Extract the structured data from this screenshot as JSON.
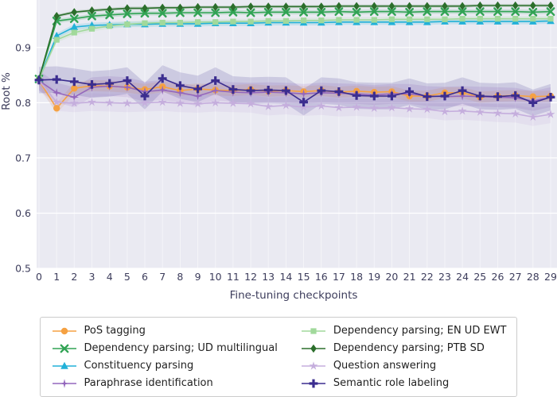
{
  "figure": {
    "xlabel": "Fine-tuning checkpoints",
    "ylabel": "Root %"
  },
  "chart_data": {
    "type": "line",
    "title": "",
    "xlabel": "Fine-tuning checkpoints",
    "ylabel": "Root %",
    "background": "#eaeaf2",
    "grid": true,
    "legend_position": "below",
    "x": [
      0,
      1,
      2,
      3,
      4,
      5,
      6,
      7,
      8,
      9,
      10,
      11,
      12,
      13,
      14,
      15,
      16,
      17,
      18,
      19,
      20,
      21,
      22,
      23,
      24,
      25,
      26,
      27,
      28,
      29
    ],
    "xlim": [
      0,
      29
    ],
    "ylim": [
      0.5,
      0.986
    ],
    "yticks": [
      0.5,
      0.6,
      0.7,
      0.8,
      0.9
    ],
    "ytick_labels": [
      "0.5",
      "0.6",
      "0.7",
      "0.8",
      "0.9"
    ],
    "series": [
      {
        "name": "PoS tagging",
        "color": "#f5a142",
        "marker": "circle",
        "band": 0.01,
        "values": [
          0.84,
          0.79,
          0.826,
          0.831,
          0.83,
          0.828,
          0.824,
          0.829,
          0.822,
          0.825,
          0.823,
          0.822,
          0.824,
          0.821,
          0.822,
          0.82,
          0.822,
          0.819,
          0.821,
          0.819,
          0.82,
          0.812,
          0.812,
          0.818,
          0.818,
          0.81,
          0.812,
          0.813,
          0.811,
          0.812
        ]
      },
      {
        "name": "Dependency parsing; UD multilingual",
        "color": "#31a354",
        "marker": "x",
        "band": 0.004,
        "values": [
          0.843,
          0.948,
          0.952,
          0.957,
          0.959,
          0.961,
          0.962,
          0.962,
          0.963,
          0.963,
          0.963,
          0.964,
          0.963,
          0.964,
          0.964,
          0.964,
          0.964,
          0.965,
          0.964,
          0.965,
          0.965,
          0.964,
          0.965,
          0.965,
          0.965,
          0.965,
          0.965,
          0.965,
          0.964,
          0.965
        ]
      },
      {
        "name": "Constituency parsing",
        "color": "#22b1d8",
        "marker": "triangle",
        "band": 0.005,
        "values": [
          0.843,
          0.921,
          0.937,
          0.94,
          0.941,
          0.942,
          0.942,
          0.943,
          0.943,
          0.943,
          0.944,
          0.944,
          0.944,
          0.945,
          0.945,
          0.945,
          0.945,
          0.946,
          0.946,
          0.946,
          0.946,
          0.946,
          0.946,
          0.947,
          0.947,
          0.947,
          0.947,
          0.947,
          0.947,
          0.948
        ]
      },
      {
        "name": "Paraphrase identification",
        "color": "#9467bd",
        "marker": "star4",
        "band": 0.018,
        "values": [
          0.84,
          0.818,
          0.81,
          0.828,
          0.83,
          0.828,
          0.82,
          0.823,
          0.818,
          0.812,
          0.822,
          0.819,
          0.818,
          0.819,
          0.818,
          0.816,
          0.818,
          0.817,
          0.816,
          0.814,
          0.816,
          0.816,
          0.812,
          0.811,
          0.812,
          0.811,
          0.81,
          0.809,
          0.803,
          0.81
        ]
      },
      {
        "name": "Dependency parsing; EN UD EWT",
        "color": "#a1d99b",
        "marker": "square",
        "band": 0.005,
        "values": [
          0.843,
          0.914,
          0.927,
          0.934,
          0.939,
          0.942,
          0.944,
          0.945,
          0.945,
          0.946,
          0.946,
          0.947,
          0.947,
          0.948,
          0.948,
          0.949,
          0.949,
          0.95,
          0.95,
          0.95,
          0.951,
          0.951,
          0.951,
          0.951,
          0.952,
          0.952,
          0.952,
          0.952,
          0.952,
          0.952
        ]
      },
      {
        "name": "Dependency parsing; PTB SD",
        "color": "#2b6e2b",
        "marker": "diamond",
        "band": 0.003,
        "values": [
          0.843,
          0.957,
          0.964,
          0.967,
          0.969,
          0.971,
          0.971,
          0.972,
          0.972,
          0.973,
          0.973,
          0.973,
          0.974,
          0.974,
          0.974,
          0.974,
          0.974,
          0.975,
          0.975,
          0.975,
          0.975,
          0.975,
          0.975,
          0.975,
          0.975,
          0.976,
          0.976,
          0.976,
          0.976,
          0.976
        ]
      },
      {
        "name": "Question answering",
        "color": "#c5aedd",
        "marker": "star5",
        "band": 0.016,
        "values": [
          0.84,
          0.801,
          0.799,
          0.801,
          0.8,
          0.799,
          0.8,
          0.801,
          0.799,
          0.798,
          0.8,
          0.799,
          0.798,
          0.793,
          0.795,
          0.792,
          0.794,
          0.791,
          0.792,
          0.79,
          0.791,
          0.789,
          0.788,
          0.784,
          0.785,
          0.783,
          0.781,
          0.78,
          0.774,
          0.779
        ]
      },
      {
        "name": "Semantic role labeling",
        "color": "#3b2d8f",
        "marker": "plus",
        "band": 0.024,
        "values": [
          0.841,
          0.842,
          0.838,
          0.833,
          0.835,
          0.84,
          0.812,
          0.844,
          0.831,
          0.825,
          0.84,
          0.824,
          0.822,
          0.823,
          0.822,
          0.801,
          0.822,
          0.82,
          0.813,
          0.812,
          0.812,
          0.82,
          0.811,
          0.812,
          0.822,
          0.812,
          0.811,
          0.813,
          0.8,
          0.81
        ]
      }
    ]
  }
}
